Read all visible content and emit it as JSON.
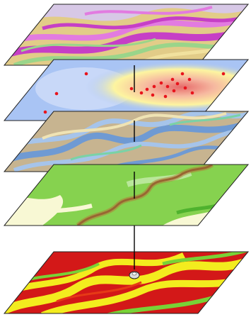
{
  "diagram": {
    "type": "gis-layer-stack",
    "layers": [
      {
        "name": "terrain-layer",
        "base_color": "#e2cc88",
        "palette": [
          "#c63fc6",
          "#e27be0",
          "#9ad58a",
          "#d7c8e6",
          "#f1e19e"
        ]
      },
      {
        "name": "point-density-layer",
        "base_color": "#a9c4f4",
        "palette": [
          "#fdf5a0",
          "#f6b8a0",
          "#e66a6a",
          "#c8d8f8"
        ],
        "marker_color": "#e8141c"
      },
      {
        "name": "hydrology-layer",
        "base_color": "#c7b490",
        "palette": [
          "#6f9ad3",
          "#a6c4ea",
          "#7ad2a6",
          "#efe3b4"
        ]
      },
      {
        "name": "landcover-layer",
        "base_color": "#86d24f",
        "palette": [
          "#f8f8d4",
          "#4fb22e",
          "#b9e79a",
          "#7a4a2c"
        ],
        "path_color": "#b37b39"
      },
      {
        "name": "result-layer",
        "base_color": "#d31818",
        "palette": [
          "#f3ec1e",
          "#78d236",
          "#e63a16"
        ]
      }
    ],
    "connector_color": "#000000"
  }
}
